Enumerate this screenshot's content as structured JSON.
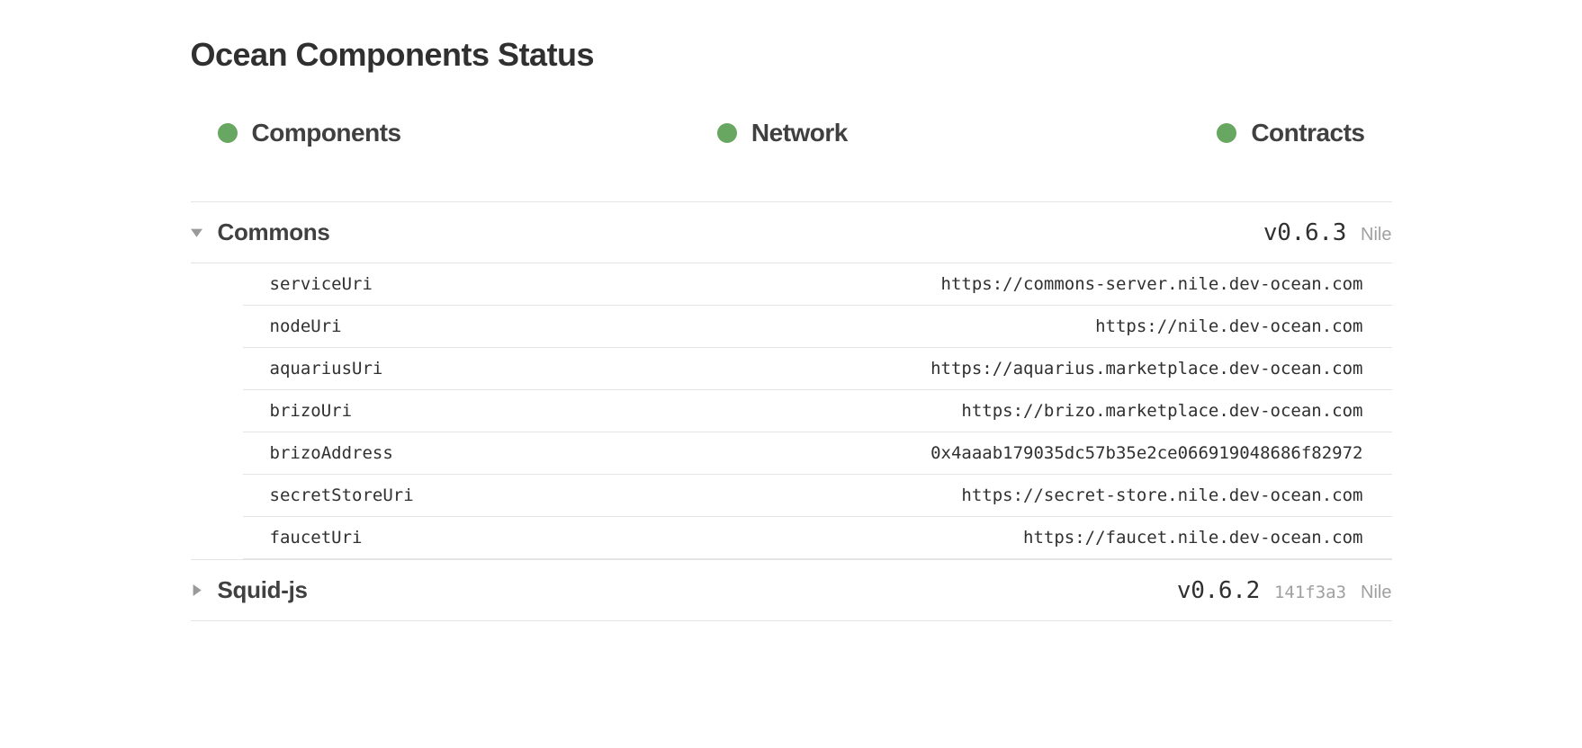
{
  "page": {
    "title": "Ocean Components Status"
  },
  "colors": {
    "status_ok": "#68a761",
    "text_primary": "#303030",
    "text_secondary": "#a0a0a0",
    "border": "#e4e4e4",
    "background": "#ffffff"
  },
  "status_indicators": [
    {
      "label": "Components",
      "color": "#68a761"
    },
    {
      "label": "Network",
      "color": "#68a761"
    },
    {
      "label": "Contracts",
      "color": "#68a761"
    }
  ],
  "components": [
    {
      "name": "Commons",
      "version": "v0.6.3",
      "hash": "",
      "network": "Nile",
      "expanded": true,
      "details": [
        {
          "key": "serviceUri",
          "value": "https://commons-server.nile.dev-ocean.com"
        },
        {
          "key": "nodeUri",
          "value": "https://nile.dev-ocean.com"
        },
        {
          "key": "aquariusUri",
          "value": "https://aquarius.marketplace.dev-ocean.com"
        },
        {
          "key": "brizoUri",
          "value": "https://brizo.marketplace.dev-ocean.com"
        },
        {
          "key": "brizoAddress",
          "value": "0x4aaab179035dc57b35e2ce066919048686f82972"
        },
        {
          "key": "secretStoreUri",
          "value": "https://secret-store.nile.dev-ocean.com"
        },
        {
          "key": "faucetUri",
          "value": "https://faucet.nile.dev-ocean.com"
        }
      ]
    },
    {
      "name": "Squid-js",
      "version": "v0.6.2",
      "hash": "141f3a3",
      "network": "Nile",
      "expanded": false,
      "details": []
    }
  ]
}
